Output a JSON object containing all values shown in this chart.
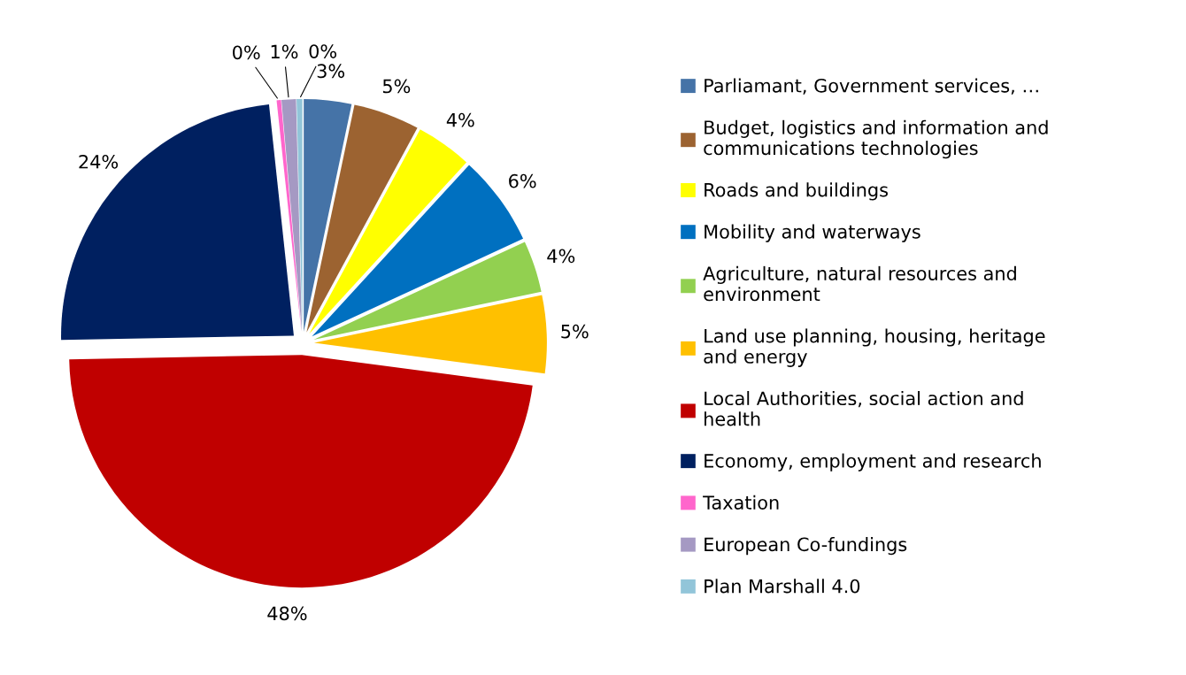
{
  "chart_data": {
    "type": "pie",
    "categories": [
      "Parliamant, Government services, …",
      "Budget, logistics and information and communications technologies",
      "Roads and buildings",
      "Mobility and waterways",
      "Agriculture, natural resources and environment",
      "Land use planning, housing, heritage and energy",
      "Local Authorities, social action and health",
      "Economy, employment and research",
      "Taxation",
      "European Co-fundings",
      "Plan Marshall 4.0"
    ],
    "values": [
      3.3,
      4.6,
      3.9,
      6.3,
      3.6,
      5.4,
      47.6,
      23.6,
      0.3,
      1.0,
      0.4
    ],
    "value_labels": [
      "3%",
      "5%",
      "4%",
      "6%",
      "4%",
      "5%",
      "48%",
      "24%",
      "0%",
      "1%",
      "0%"
    ],
    "colors": [
      "#4573a7",
      "#9c6331",
      "#ffff00",
      "#0070c0",
      "#92d050",
      "#ffc000",
      "#c00000",
      "#002060",
      "#ff66cc",
      "#a599c3",
      "#92c5d9"
    ],
    "legend": "right"
  }
}
